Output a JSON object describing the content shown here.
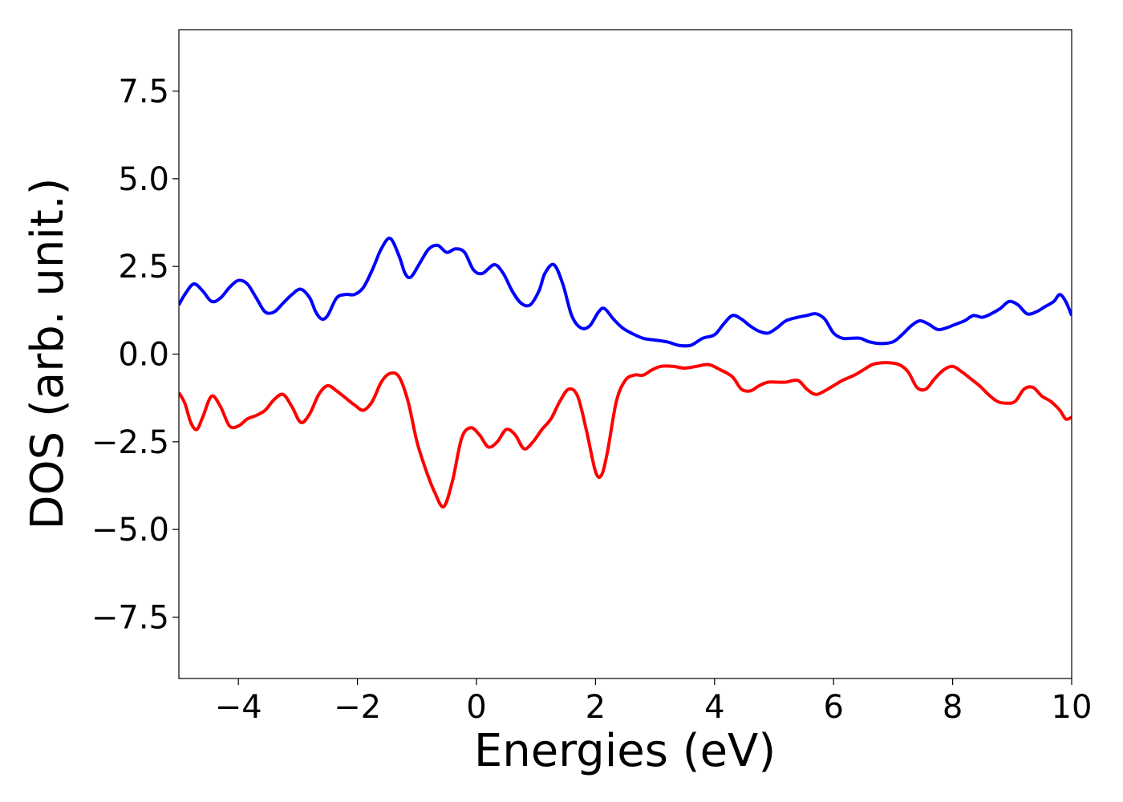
{
  "chart_data": {
    "type": "line",
    "title": "",
    "xlabel": "Energies (eV)",
    "ylabel": "DOS (arb. unit.)",
    "xlim": [
      -5,
      10
    ],
    "ylim": [
      -9.25,
      9.25
    ],
    "grid": false,
    "legend": "none",
    "x_ticks": [
      -4,
      -2,
      0,
      2,
      4,
      6,
      8,
      10
    ],
    "x_tick_labels": [
      "−4",
      "−2",
      "0",
      "2",
      "4",
      "6",
      "8",
      "10"
    ],
    "y_ticks": [
      -7.5,
      -5.0,
      -2.5,
      0.0,
      2.5,
      5.0,
      7.5
    ],
    "y_tick_labels": [
      "−7.5",
      "−5.0",
      "−2.5",
      "0.0",
      "2.5",
      "5.0",
      "7.5"
    ],
    "series": [
      {
        "color": "#0000ff",
        "points": [
          [
            -5.0,
            1.4
          ],
          [
            -4.9,
            1.7
          ],
          [
            -4.75,
            2.0
          ],
          [
            -4.6,
            1.8
          ],
          [
            -4.45,
            1.5
          ],
          [
            -4.3,
            1.6
          ],
          [
            -4.15,
            1.9
          ],
          [
            -4.0,
            2.1
          ],
          [
            -3.85,
            2.0
          ],
          [
            -3.7,
            1.6
          ],
          [
            -3.55,
            1.2
          ],
          [
            -3.4,
            1.2
          ],
          [
            -3.25,
            1.45
          ],
          [
            -3.1,
            1.7
          ],
          [
            -2.95,
            1.85
          ],
          [
            -2.8,
            1.6
          ],
          [
            -2.7,
            1.2
          ],
          [
            -2.6,
            1.0
          ],
          [
            -2.5,
            1.1
          ],
          [
            -2.35,
            1.6
          ],
          [
            -2.2,
            1.7
          ],
          [
            -2.05,
            1.7
          ],
          [
            -1.9,
            1.9
          ],
          [
            -1.75,
            2.4
          ],
          [
            -1.6,
            3.0
          ],
          [
            -1.45,
            3.3
          ],
          [
            -1.3,
            2.8
          ],
          [
            -1.2,
            2.3
          ],
          [
            -1.1,
            2.2
          ],
          [
            -0.95,
            2.6
          ],
          [
            -0.8,
            3.0
          ],
          [
            -0.65,
            3.1
          ],
          [
            -0.5,
            2.9
          ],
          [
            -0.35,
            3.0
          ],
          [
            -0.2,
            2.9
          ],
          [
            -0.05,
            2.4
          ],
          [
            0.1,
            2.3
          ],
          [
            0.3,
            2.55
          ],
          [
            0.45,
            2.3
          ],
          [
            0.6,
            1.8
          ],
          [
            0.75,
            1.45
          ],
          [
            0.9,
            1.4
          ],
          [
            1.05,
            1.8
          ],
          [
            1.15,
            2.3
          ],
          [
            1.3,
            2.55
          ],
          [
            1.45,
            2.0
          ],
          [
            1.6,
            1.1
          ],
          [
            1.75,
            0.75
          ],
          [
            1.9,
            0.8
          ],
          [
            2.05,
            1.2
          ],
          [
            2.15,
            1.3
          ],
          [
            2.3,
            1.0
          ],
          [
            2.45,
            0.75
          ],
          [
            2.6,
            0.6
          ],
          [
            2.8,
            0.45
          ],
          [
            3.0,
            0.4
          ],
          [
            3.2,
            0.35
          ],
          [
            3.4,
            0.25
          ],
          [
            3.6,
            0.25
          ],
          [
            3.8,
            0.45
          ],
          [
            4.0,
            0.55
          ],
          [
            4.15,
            0.85
          ],
          [
            4.3,
            1.1
          ],
          [
            4.45,
            1.0
          ],
          [
            4.6,
            0.8
          ],
          [
            4.75,
            0.65
          ],
          [
            4.9,
            0.6
          ],
          [
            5.05,
            0.75
          ],
          [
            5.2,
            0.95
          ],
          [
            5.4,
            1.05
          ],
          [
            5.55,
            1.1
          ],
          [
            5.7,
            1.15
          ],
          [
            5.85,
            1.0
          ],
          [
            6.0,
            0.6
          ],
          [
            6.15,
            0.45
          ],
          [
            6.3,
            0.45
          ],
          [
            6.45,
            0.45
          ],
          [
            6.6,
            0.35
          ],
          [
            6.8,
            0.3
          ],
          [
            7.0,
            0.35
          ],
          [
            7.15,
            0.55
          ],
          [
            7.3,
            0.8
          ],
          [
            7.45,
            0.95
          ],
          [
            7.6,
            0.85
          ],
          [
            7.75,
            0.7
          ],
          [
            7.9,
            0.75
          ],
          [
            8.05,
            0.85
          ],
          [
            8.2,
            0.95
          ],
          [
            8.35,
            1.1
          ],
          [
            8.5,
            1.05
          ],
          [
            8.65,
            1.15
          ],
          [
            8.8,
            1.3
          ],
          [
            8.95,
            1.5
          ],
          [
            9.1,
            1.4
          ],
          [
            9.25,
            1.15
          ],
          [
            9.4,
            1.2
          ],
          [
            9.55,
            1.35
          ],
          [
            9.7,
            1.5
          ],
          [
            9.8,
            1.7
          ],
          [
            9.9,
            1.5
          ],
          [
            10.0,
            1.1
          ]
        ]
      },
      {
        "color": "#ff0000",
        "points": [
          [
            -5.0,
            -1.1
          ],
          [
            -4.9,
            -1.4
          ],
          [
            -4.8,
            -1.95
          ],
          [
            -4.7,
            -2.15
          ],
          [
            -4.6,
            -1.8
          ],
          [
            -4.45,
            -1.2
          ],
          [
            -4.3,
            -1.5
          ],
          [
            -4.15,
            -2.05
          ],
          [
            -4.0,
            -2.05
          ],
          [
            -3.85,
            -1.85
          ],
          [
            -3.7,
            -1.75
          ],
          [
            -3.55,
            -1.6
          ],
          [
            -3.4,
            -1.3
          ],
          [
            -3.25,
            -1.15
          ],
          [
            -3.1,
            -1.5
          ],
          [
            -2.95,
            -1.95
          ],
          [
            -2.8,
            -1.7
          ],
          [
            -2.65,
            -1.15
          ],
          [
            -2.5,
            -0.9
          ],
          [
            -2.35,
            -1.05
          ],
          [
            -2.2,
            -1.25
          ],
          [
            -2.05,
            -1.45
          ],
          [
            -1.9,
            -1.6
          ],
          [
            -1.75,
            -1.35
          ],
          [
            -1.6,
            -0.8
          ],
          [
            -1.45,
            -0.55
          ],
          [
            -1.3,
            -0.65
          ],
          [
            -1.15,
            -1.35
          ],
          [
            -1.0,
            -2.5
          ],
          [
            -0.85,
            -3.3
          ],
          [
            -0.7,
            -3.95
          ],
          [
            -0.55,
            -4.35
          ],
          [
            -0.4,
            -3.6
          ],
          [
            -0.25,
            -2.4
          ],
          [
            -0.1,
            -2.1
          ],
          [
            0.05,
            -2.3
          ],
          [
            0.2,
            -2.65
          ],
          [
            0.35,
            -2.5
          ],
          [
            0.5,
            -2.15
          ],
          [
            0.65,
            -2.3
          ],
          [
            0.8,
            -2.7
          ],
          [
            0.95,
            -2.5
          ],
          [
            1.1,
            -2.15
          ],
          [
            1.25,
            -1.85
          ],
          [
            1.4,
            -1.35
          ],
          [
            1.55,
            -1.0
          ],
          [
            1.7,
            -1.2
          ],
          [
            1.85,
            -2.2
          ],
          [
            2.0,
            -3.35
          ],
          [
            2.1,
            -3.45
          ],
          [
            2.2,
            -2.8
          ],
          [
            2.35,
            -1.35
          ],
          [
            2.5,
            -0.75
          ],
          [
            2.65,
            -0.6
          ],
          [
            2.8,
            -0.6
          ],
          [
            2.95,
            -0.45
          ],
          [
            3.1,
            -0.35
          ],
          [
            3.3,
            -0.35
          ],
          [
            3.5,
            -0.4
          ],
          [
            3.7,
            -0.35
          ],
          [
            3.9,
            -0.3
          ],
          [
            4.1,
            -0.45
          ],
          [
            4.3,
            -0.65
          ],
          [
            4.45,
            -1.0
          ],
          [
            4.6,
            -1.05
          ],
          [
            4.75,
            -0.9
          ],
          [
            4.9,
            -0.8
          ],
          [
            5.05,
            -0.8
          ],
          [
            5.2,
            -0.8
          ],
          [
            5.4,
            -0.75
          ],
          [
            5.55,
            -1.0
          ],
          [
            5.7,
            -1.15
          ],
          [
            5.85,
            -1.05
          ],
          [
            6.0,
            -0.9
          ],
          [
            6.15,
            -0.75
          ],
          [
            6.35,
            -0.6
          ],
          [
            6.5,
            -0.45
          ],
          [
            6.65,
            -0.3
          ],
          [
            6.8,
            -0.25
          ],
          [
            6.95,
            -0.25
          ],
          [
            7.1,
            -0.3
          ],
          [
            7.25,
            -0.5
          ],
          [
            7.4,
            -0.95
          ],
          [
            7.55,
            -1.0
          ],
          [
            7.7,
            -0.7
          ],
          [
            7.85,
            -0.45
          ],
          [
            8.0,
            -0.35
          ],
          [
            8.15,
            -0.5
          ],
          [
            8.3,
            -0.7
          ],
          [
            8.45,
            -0.9
          ],
          [
            8.6,
            -1.15
          ],
          [
            8.75,
            -1.35
          ],
          [
            8.9,
            -1.4
          ],
          [
            9.05,
            -1.35
          ],
          [
            9.2,
            -1.0
          ],
          [
            9.35,
            -0.95
          ],
          [
            9.5,
            -1.2
          ],
          [
            9.65,
            -1.35
          ],
          [
            9.8,
            -1.6
          ],
          [
            9.9,
            -1.85
          ],
          [
            10.0,
            -1.8
          ]
        ]
      }
    ]
  }
}
